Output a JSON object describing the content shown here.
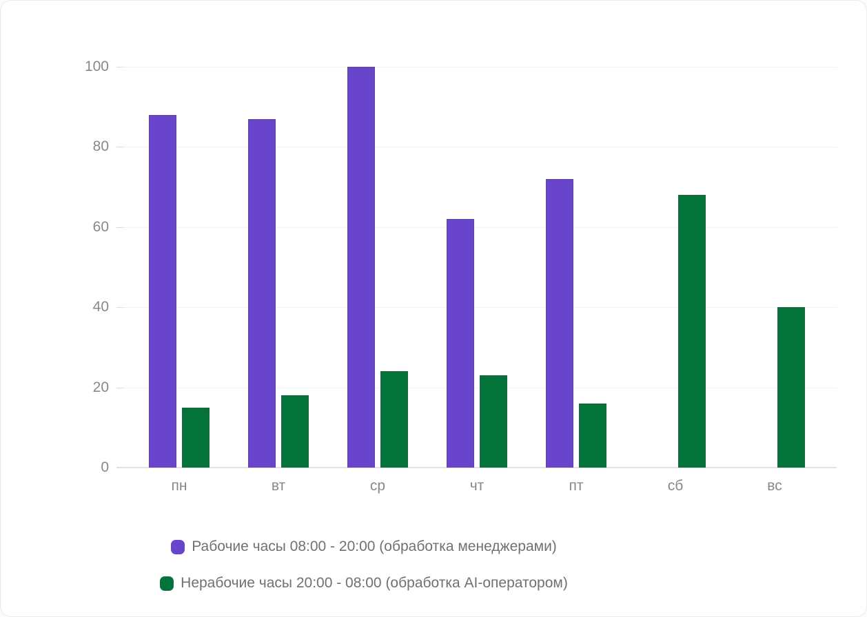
{
  "chart_data": {
    "type": "bar",
    "categories": [
      "пн",
      "вт",
      "ср",
      "чт",
      "пт",
      "сб",
      "вс"
    ],
    "series": [
      {
        "name": "Рабочие часы 08:00 - 20:00 (обработка менеджерами)",
        "color": "#6845cb",
        "values": [
          88,
          87,
          100,
          62,
          72,
          0,
          0
        ]
      },
      {
        "name": "Нерабочие часы 20:00 - 08:00 (обработка AI-оператором)",
        "color": "#047339",
        "values": [
          15,
          18,
          24,
          23,
          16,
          68,
          40
        ]
      }
    ],
    "title": "",
    "xlabel": "",
    "ylabel": "",
    "ylim": [
      0,
      100
    ],
    "yticks": [
      0,
      20,
      40,
      60,
      80,
      100
    ],
    "grid": true,
    "grid_style": "dotted",
    "legend_position": "bottom"
  },
  "colors": {
    "axis_text": "#86898c",
    "legend_text": "#6d7175",
    "gridline": "#e7e7e7",
    "axis_line": "#e1e1e1",
    "card_background": "#ffffff"
  }
}
